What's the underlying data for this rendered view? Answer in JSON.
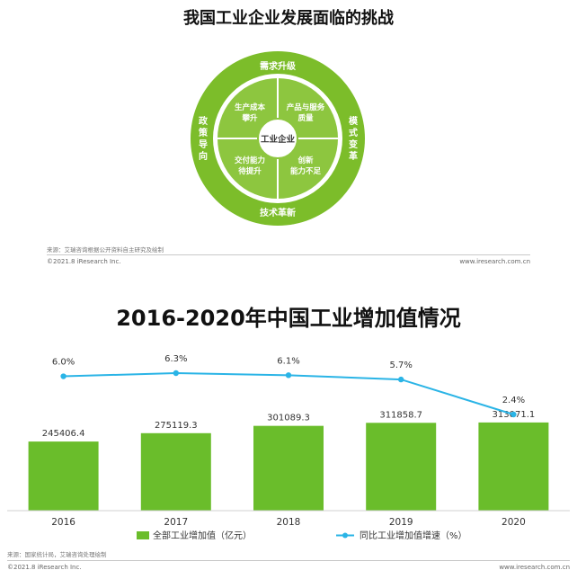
{
  "diagram": {
    "title": "我国工业企业发展面临的挑战",
    "center": "工业企业",
    "outer_ring": {
      "top": "需求升级",
      "left": "政策导向",
      "right": "模式变革",
      "bottom": "技术革新"
    },
    "quadrants": {
      "top_left": [
        "生产成本",
        "攀升"
      ],
      "top_right": [
        "产品与服务",
        "质量"
      ],
      "bottom_left": [
        "交付能力",
        "待提升"
      ],
      "bottom_right": [
        "创新",
        "能力不足"
      ]
    },
    "source": "来源：艾瑞咨询根据公开资料自主研究及绘制",
    "copyright": "©2021.8 iResearch Inc.",
    "website": "www.iresearch.com.cn",
    "colors": {
      "outer": "#7cbd2a",
      "inner": "#8dc63f",
      "center": "#ffffff"
    }
  },
  "chart_data": {
    "type": "bar",
    "title": "2016-2020年中国工业增加值情况",
    "categories": [
      "2016",
      "2017",
      "2018",
      "2019",
      "2020"
    ],
    "series": [
      {
        "name": "全部工业增加值（亿元）",
        "type": "bar",
        "color": "#6abd2b",
        "values": [
          245406.4,
          275119.3,
          301089.3,
          311858.7,
          313071.1
        ],
        "labels": [
          "245406.4",
          "275119.3",
          "301089.3",
          "311858.7",
          "313071.1"
        ]
      },
      {
        "name": "同比工业增加值增速（%）",
        "type": "line",
        "color": "#2ab4e6",
        "values": [
          6.0,
          6.3,
          6.1,
          5.7,
          2.4
        ],
        "labels": [
          "6.0%",
          "6.3%",
          "6.1%",
          "5.7%",
          "2.4%"
        ]
      }
    ],
    "source": "来源：国家统计局，艾瑞咨询处理绘制",
    "copyright": "©2021.8 iResearch Inc.",
    "website": "www.iresearch.com.cn"
  }
}
